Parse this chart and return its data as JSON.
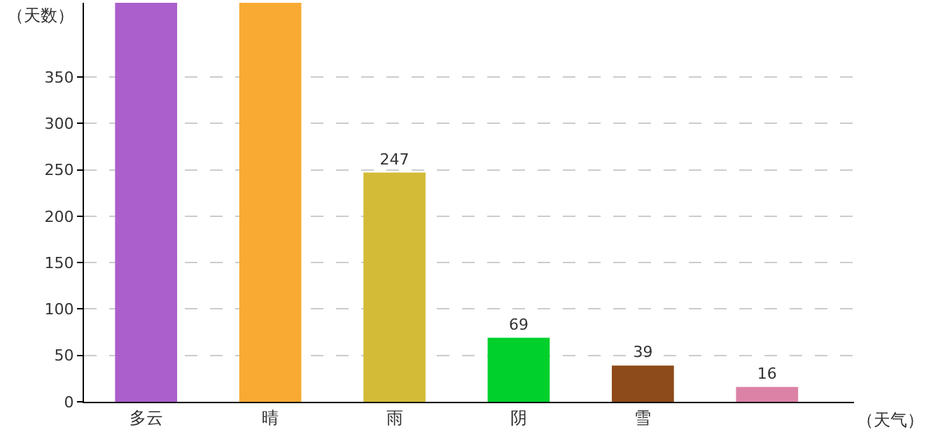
{
  "chart_data": {
    "type": "bar",
    "xlabel": "（天气）",
    "ylabel": "（天数）",
    "categories": [
      "多云",
      "晴",
      "雨",
      "阴",
      "雪",
      null
    ],
    "values": [
      430,
      430,
      247,
      69,
      39,
      16
    ],
    "colors": [
      "#aa5fcc",
      "#f8aa33",
      "#d3bb37",
      "#00d02b",
      "#8d4a1a",
      "#dc82a7"
    ],
    "value_labels": [
      null,
      null,
      "247",
      "69",
      "39",
      "16"
    ],
    "ylim": [
      0,
      430
    ],
    "yticks": [
      0,
      50,
      100,
      150,
      200,
      250,
      300,
      350
    ],
    "grid": "y"
  }
}
